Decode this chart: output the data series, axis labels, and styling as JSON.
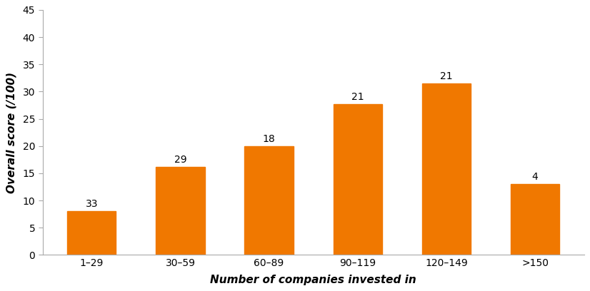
{
  "categories": [
    "1–29",
    "30–59",
    "60–89",
    "90–119",
    "120–149",
    ">150"
  ],
  "values": [
    8.0,
    16.2,
    20.0,
    27.7,
    31.5,
    13.0
  ],
  "labels": [
    33,
    29,
    18,
    21,
    21,
    4
  ],
  "bar_color": "#F07800",
  "xlabel": "Number of companies invested in",
  "ylabel": "Overall score (/100)",
  "ylim": [
    0,
    45
  ],
  "yticks": [
    0,
    5,
    10,
    15,
    20,
    25,
    30,
    35,
    40,
    45
  ],
  "bar_width": 0.55,
  "label_fontsize": 10,
  "axis_label_fontsize": 11,
  "tick_fontsize": 10,
  "background_color": "#ffffff"
}
